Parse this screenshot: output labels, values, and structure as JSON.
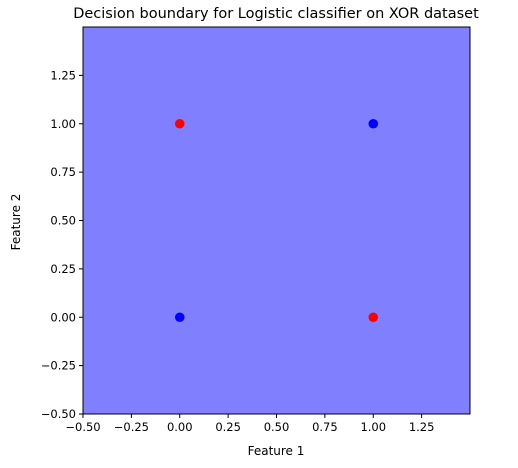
{
  "chart_data": {
    "type": "scatter",
    "title": "Decision boundary for Logistic classifier on XOR dataset",
    "xlabel": "Feature 1",
    "ylabel": "Feature 2",
    "xlim": [
      -0.5,
      1.5
    ],
    "ylim": [
      -0.5,
      1.5
    ],
    "x_ticks": [
      -0.5,
      -0.25,
      0.0,
      0.25,
      0.5,
      0.75,
      1.0,
      1.25
    ],
    "y_ticks": [
      -0.5,
      -0.25,
      0.0,
      0.25,
      0.5,
      0.75,
      1.0,
      1.25
    ],
    "x_tick_labels": [
      "−0.50",
      "−0.25",
      "0.00",
      "0.25",
      "0.50",
      "0.75",
      "1.00",
      "1.25"
    ],
    "y_tick_labels": [
      "−0.50",
      "−0.25",
      "0.00",
      "0.25",
      "0.50",
      "0.75",
      "1.00",
      "1.25"
    ],
    "background_region_color": "#8080ff",
    "class_colors": {
      "class_0": "#0000ff",
      "class_1": "#ff0000"
    },
    "points": [
      {
        "x": 0,
        "y": 0,
        "class": "class_0"
      },
      {
        "x": 0,
        "y": 1,
        "class": "class_1"
      },
      {
        "x": 1,
        "y": 0,
        "class": "class_1"
      },
      {
        "x": 1,
        "y": 1,
        "class": "class_0"
      }
    ],
    "grid": false,
    "legend": "none"
  }
}
